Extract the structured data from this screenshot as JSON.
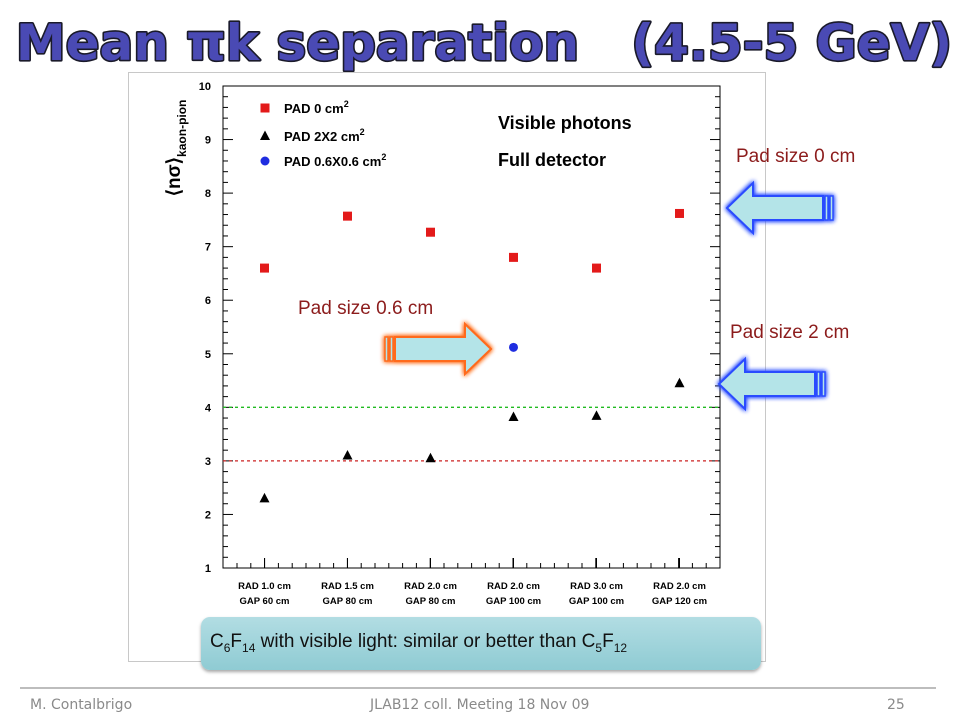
{
  "slide": {
    "title": "Mean πk separation   (4.5-5 GeV)",
    "footer_author": "M. Contalbrigo",
    "footer_meeting": "JLAB12 coll. Meeting 18 Nov 09",
    "footer_page": "25",
    "annotations": {
      "pad_0": "Pad size 0 cm",
      "pad_2": "Pad size 2 cm",
      "pad_06": "Pad size 0.6 cm"
    },
    "callout": {
      "pre": "C",
      "sub1": "6",
      "mid1": "F",
      "sub2": "14",
      "mid2": " with visible light: similar or better than C",
      "sub3": "5",
      "mid3": "F",
      "sub4": "12"
    }
  },
  "colors": {
    "title_fill": "#4a4ab4",
    "title_outline": "#1a1a2a",
    "pad0": "#e31a1a",
    "pad2": "#000000",
    "pad06": "#1f2de0",
    "line_green": "#22bb22",
    "line_red": "#cc2222",
    "arrow_blue_fill": "#b4e4e8",
    "arrow_blue_glow": "#2a4cff",
    "arrow_orange_fill": "#b4e4e8",
    "arrow_orange_glow": "#ff6a1a"
  },
  "chart_data": {
    "type": "scatter",
    "ylabel": "⟨nσ⟩",
    "ylabel_sub": "kaon-pion",
    "ylim": [
      1,
      10
    ],
    "yticks": [
      "1",
      "2",
      "3",
      "4",
      "5",
      "6",
      "7",
      "8",
      "9",
      "10"
    ],
    "categories": [
      [
        "RAD 1.0 cm",
        "GAP 60 cm"
      ],
      [
        "RAD 1.5 cm",
        "GAP 80 cm"
      ],
      [
        "RAD 2.0 cm",
        "GAP 80 cm"
      ],
      [
        "RAD 2.0 cm",
        "GAP 100 cm"
      ],
      [
        "RAD 3.0 cm",
        "GAP 100 cm"
      ],
      [
        "RAD 2.0 cm",
        "GAP 120 cm"
      ]
    ],
    "series": [
      {
        "name": "PAD 0 cm",
        "name_sup": "2",
        "marker": "square",
        "points": [
          [
            0,
            6.6
          ],
          [
            1,
            7.57
          ],
          [
            2,
            7.27
          ],
          [
            3,
            6.8
          ],
          [
            4,
            6.6
          ],
          [
            5,
            7.62
          ]
        ]
      },
      {
        "name": "PAD 2X2 cm",
        "name_sup": "2",
        "marker": "triangle",
        "points": [
          [
            0,
            2.3
          ],
          [
            1,
            3.1
          ],
          [
            2,
            3.05
          ],
          [
            3,
            3.82
          ],
          [
            4,
            3.84
          ],
          [
            5,
            4.45
          ]
        ]
      },
      {
        "name": "PAD 0.6X0.6 cm",
        "name_sup": "2",
        "marker": "circle",
        "points": [
          [
            3,
            5.12
          ]
        ]
      }
    ],
    "reference_lines": [
      {
        "y": 4,
        "color": "green",
        "style": "dashed"
      },
      {
        "y": 3,
        "color": "red",
        "style": "dashed"
      }
    ],
    "annotations": [
      "Visible photons",
      "Full detector"
    ],
    "legend_position": "top-left",
    "grid": false
  }
}
